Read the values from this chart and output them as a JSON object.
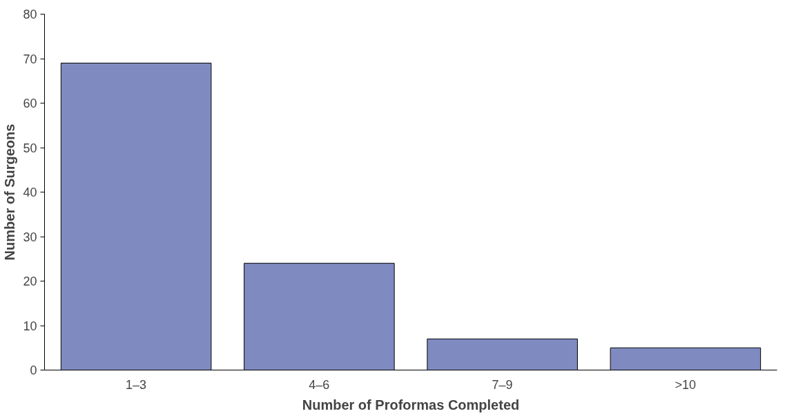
{
  "chart_data": {
    "type": "bar",
    "xlabel": "Number of Proformas Completed",
    "ylabel": "Number of Surgeons",
    "categories": [
      "1–3",
      "4–6",
      "7–9",
      ">10"
    ],
    "values": [
      69,
      24,
      7,
      5
    ],
    "color": "#7f8bc0",
    "ylim": [
      0,
      80
    ],
    "yticks": [
      0,
      10,
      20,
      30,
      40,
      50,
      60,
      70,
      80
    ],
    "grid": false
  }
}
